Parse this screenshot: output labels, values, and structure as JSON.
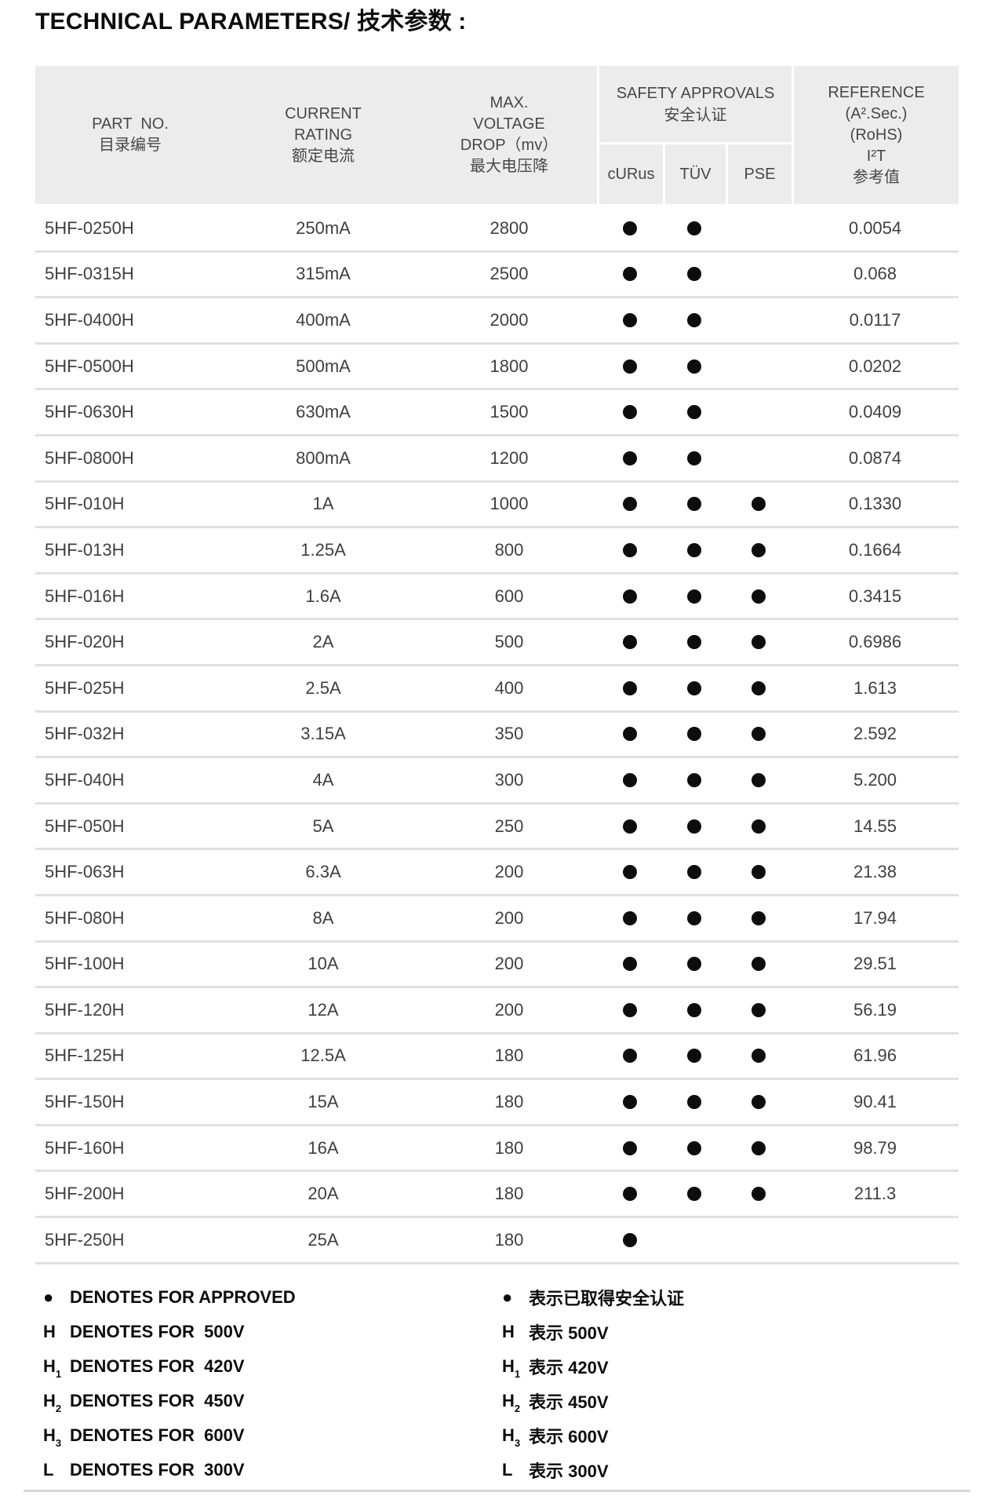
{
  "page": {
    "title": "TECHNICAL PARAMETERS/ 技术参数 :"
  },
  "table": {
    "header": {
      "part_no": [
        "PART  NO.",
        "目录编号"
      ],
      "current_rating": [
        "CURRENT",
        "RATING",
        "额定电流"
      ],
      "voltage_drop": [
        "MAX.",
        "VOLTAGE",
        "DROP（mv）",
        "最大电压降"
      ],
      "safety_approvals": [
        "SAFETY APPROVALS",
        "安全认证"
      ],
      "safety_sub_columns": [
        "cURus",
        "TÜV",
        "PSE"
      ],
      "reference": [
        "REFERENCE",
        "(A².Sec.)",
        "(RoHS)",
        "I²T",
        "参考值"
      ]
    },
    "approved_dot": "●",
    "rows": [
      {
        "part_no": "5HF-0250H",
        "current_rating": "250mA",
        "max_voltage_drop": "2800",
        "curus": true,
        "tuv": true,
        "pse": false,
        "reference": "0.0054"
      },
      {
        "part_no": "5HF-0315H",
        "current_rating": "315mA",
        "max_voltage_drop": "2500",
        "curus": true,
        "tuv": true,
        "pse": false,
        "reference": "0.068"
      },
      {
        "part_no": "5HF-0400H",
        "current_rating": "400mA",
        "max_voltage_drop": "2000",
        "curus": true,
        "tuv": true,
        "pse": false,
        "reference": "0.0117"
      },
      {
        "part_no": "5HF-0500H",
        "current_rating": "500mA",
        "max_voltage_drop": "1800",
        "curus": true,
        "tuv": true,
        "pse": false,
        "reference": "0.0202"
      },
      {
        "part_no": "5HF-0630H",
        "current_rating": "630mA",
        "max_voltage_drop": "1500",
        "curus": true,
        "tuv": true,
        "pse": false,
        "reference": "0.0409"
      },
      {
        "part_no": "5HF-0800H",
        "current_rating": "800mA",
        "max_voltage_drop": "1200",
        "curus": true,
        "tuv": true,
        "pse": false,
        "reference": "0.0874"
      },
      {
        "part_no": "5HF-010H",
        "current_rating": "1A",
        "max_voltage_drop": "1000",
        "curus": true,
        "tuv": true,
        "pse": true,
        "reference": "0.1330"
      },
      {
        "part_no": "5HF-013H",
        "current_rating": "1.25A",
        "max_voltage_drop": "800",
        "curus": true,
        "tuv": true,
        "pse": true,
        "reference": "0.1664"
      },
      {
        "part_no": "5HF-016H",
        "current_rating": "1.6A",
        "max_voltage_drop": "600",
        "curus": true,
        "tuv": true,
        "pse": true,
        "reference": "0.3415"
      },
      {
        "part_no": "5HF-020H",
        "current_rating": "2A",
        "max_voltage_drop": "500",
        "curus": true,
        "tuv": true,
        "pse": true,
        "reference": "0.6986"
      },
      {
        "part_no": "5HF-025H",
        "current_rating": "2.5A",
        "max_voltage_drop": "400",
        "curus": true,
        "tuv": true,
        "pse": true,
        "reference": "1.613"
      },
      {
        "part_no": "5HF-032H",
        "current_rating": "3.15A",
        "max_voltage_drop": "350",
        "curus": true,
        "tuv": true,
        "pse": true,
        "reference": "2.592"
      },
      {
        "part_no": "5HF-040H",
        "current_rating": "4A",
        "max_voltage_drop": "300",
        "curus": true,
        "tuv": true,
        "pse": true,
        "reference": "5.200"
      },
      {
        "part_no": "5HF-050H",
        "current_rating": "5A",
        "max_voltage_drop": "250",
        "curus": true,
        "tuv": true,
        "pse": true,
        "reference": "14.55"
      },
      {
        "part_no": "5HF-063H",
        "current_rating": "6.3A",
        "max_voltage_drop": "200",
        "curus": true,
        "tuv": true,
        "pse": true,
        "reference": "21.38"
      },
      {
        "part_no": "5HF-080H",
        "current_rating": "8A",
        "max_voltage_drop": "200",
        "curus": true,
        "tuv": true,
        "pse": true,
        "reference": "17.94"
      },
      {
        "part_no": "5HF-100H",
        "current_rating": "10A",
        "max_voltage_drop": "200",
        "curus": true,
        "tuv": true,
        "pse": true,
        "reference": "29.51"
      },
      {
        "part_no": "5HF-120H",
        "current_rating": "12A",
        "max_voltage_drop": "200",
        "curus": true,
        "tuv": true,
        "pse": true,
        "reference": "56.19"
      },
      {
        "part_no": "5HF-125H",
        "current_rating": "12.5A",
        "max_voltage_drop": "180",
        "curus": true,
        "tuv": true,
        "pse": true,
        "reference": "61.96"
      },
      {
        "part_no": "5HF-150H",
        "current_rating": "15A",
        "max_voltage_drop": "180",
        "curus": true,
        "tuv": true,
        "pse": true,
        "reference": "90.41"
      },
      {
        "part_no": "5HF-160H",
        "current_rating": "16A",
        "max_voltage_drop": "180",
        "curus": true,
        "tuv": true,
        "pse": true,
        "reference": "98.79"
      },
      {
        "part_no": "5HF-200H",
        "current_rating": "20A",
        "max_voltage_drop": "180",
        "curus": true,
        "tuv": true,
        "pse": true,
        "reference": "211.3"
      },
      {
        "part_no": "5HF-250H",
        "current_rating": "25A",
        "max_voltage_drop": "180",
        "curus": true,
        "tuv": false,
        "pse": false,
        "reference": ""
      }
    ]
  },
  "legend": {
    "items": [
      {
        "sym": "●",
        "sub": "",
        "en": "DENOTES FOR APPROVED",
        "zh": "表示已取得安全认证"
      },
      {
        "sym": "H",
        "sub": "",
        "en": "DENOTES FOR  500V",
        "zh": "表示 500V"
      },
      {
        "sym": "H",
        "sub": "1",
        "en": "DENOTES FOR  420V",
        "zh": "表示 420V"
      },
      {
        "sym": "H",
        "sub": "2",
        "en": "DENOTES FOR  450V",
        "zh": "表示 450V"
      },
      {
        "sym": "H",
        "sub": "3",
        "en": "DENOTES FOR  600V",
        "zh": "表示 600V"
      },
      {
        "sym": "L",
        "sub": "",
        "en": "DENOTES FOR  300V",
        "zh": "表示 300V"
      }
    ]
  },
  "colors": {
    "header_bg": "#ececec",
    "row_divider": "#e0e0e0",
    "dot": "#0d0d0d",
    "text": "#3f3f3f"
  }
}
